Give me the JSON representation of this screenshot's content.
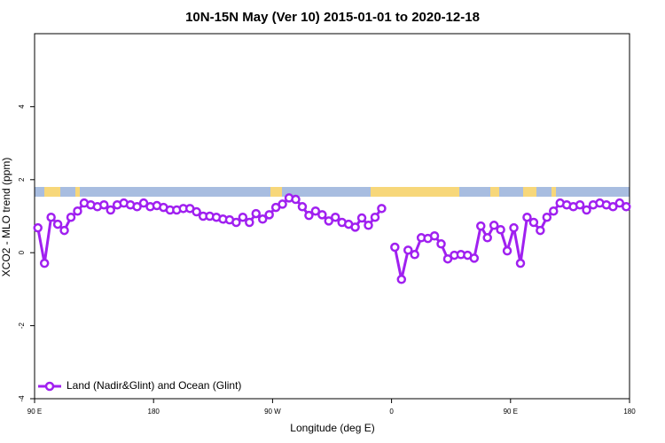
{
  "chart_data": {
    "type": "line",
    "title": "10N-15N May (Ver 10)   2015-01-01 to 2020-12-18",
    "x_label": "Longitude (deg E)",
    "y_label": "XCO2 - MLO trend (ppm)",
    "xlim": [
      90,
      540
    ],
    "xticks": [
      {
        "value": 90,
        "label": "90 E"
      },
      180,
      {
        "value": 270,
        "label": "90 W"
      },
      {
        "value": 360,
        "label": "0"
      },
      {
        "value": 450,
        "label": "90 E"
      },
      {
        "value": 540,
        "label": "180"
      }
    ],
    "ylim": [
      -4,
      6
    ],
    "yticks": [
      -4,
      -2,
      0,
      2,
      4
    ],
    "legend": "bottom-left",
    "x": [
      92.5,
      97.5,
      102.5,
      107.5,
      112.5,
      117.5,
      122.5,
      127.5,
      132.5,
      137.5,
      142.5,
      147.5,
      152.5,
      157.5,
      162.5,
      167.5,
      172.5,
      177.5,
      182.5,
      187.5,
      192.5,
      197.5,
      202.5,
      207.5,
      212.5,
      217.5,
      222.5,
      227.5,
      232.5,
      237.5,
      242.5,
      247.5,
      252.5,
      257.5,
      262.5,
      267.5,
      272.5,
      277.5,
      282.5,
      287.5,
      292.5,
      297.5,
      302.5,
      307.5,
      312.5,
      317.5,
      322.5,
      327.5,
      332.5,
      337.5,
      342.5,
      347.5,
      352.5,
      357.5,
      362.5,
      367.5,
      372.5,
      377.5,
      382.5,
      387.5,
      392.5,
      397.5,
      402.5,
      407.5,
      412.5,
      417.5,
      422.5,
      427.5,
      432.5,
      437.5,
      442.5,
      447.5,
      452.5,
      457.5,
      462.5,
      467.5,
      472.5,
      477.5,
      482.5,
      487.5,
      492.5,
      497.5,
      502.5,
      507.5,
      512.5,
      517.5,
      522.5,
      527.5,
      532.5,
      537.5
    ],
    "series": [
      {
        "name": "Land (Nadir&Glint) and Ocean (Glint)",
        "color": "#a020f0",
        "values": [
          0.68,
          -0.29,
          0.97,
          0.78,
          0.61,
          0.97,
          1.14,
          1.36,
          1.31,
          1.26,
          1.31,
          1.17,
          1.31,
          1.36,
          1.31,
          1.26,
          1.36,
          1.26,
          1.29,
          1.24,
          1.17,
          1.17,
          1.21,
          1.21,
          1.12,
          1.0,
          1.0,
          0.97,
          0.92,
          0.9,
          0.83,
          0.97,
          0.83,
          1.07,
          0.92,
          1.04,
          1.24,
          1.33,
          1.5,
          1.46,
          1.26,
          1.02,
          1.14,
          1.04,
          0.87,
          0.97,
          0.83,
          0.78,
          0.7,
          0.95,
          0.75,
          0.97,
          1.21,
          null,
          0.15,
          -0.73,
          0.07,
          -0.05,
          0.41,
          0.39,
          0.46,
          0.24,
          -0.17,
          -0.07,
          -0.05,
          -0.07,
          -0.15,
          0.73,
          0.41,
          0.75,
          0.63,
          0.05,
          0.68,
          -0.29,
          0.97,
          0.83,
          0.61,
          0.97,
          1.14,
          1.36,
          1.31,
          1.26,
          1.31,
          1.17,
          1.31,
          1.36,
          1.31,
          1.26,
          1.36,
          1.26
        ]
      }
    ]
  }
}
